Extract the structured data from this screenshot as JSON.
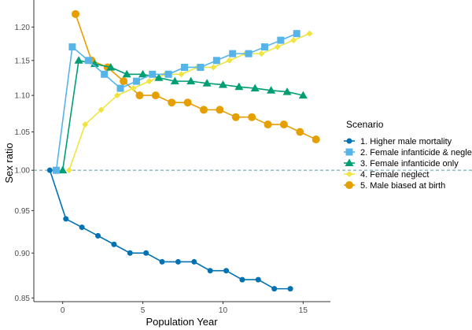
{
  "chart_data": {
    "type": "line",
    "xlabel": "Population Year",
    "ylabel": "Sex ratio",
    "y_scale": "log",
    "xlim": [
      -1.8,
      16.7
    ],
    "ylim": [
      0.846,
      1.242
    ],
    "x_ticks": [
      0,
      5,
      10,
      15
    ],
    "y_ticks": [
      0.85,
      0.9,
      0.95,
      1.0,
      1.05,
      1.1,
      1.15,
      1.2
    ],
    "reference_line": {
      "y": 1.0,
      "style": "dashed",
      "color": "#5b9aa8"
    },
    "grid": false,
    "legend": {
      "title": "Scenario",
      "placement": "right"
    },
    "series": [
      {
        "name": "1. Higher male mortality",
        "color": "#0072B2",
        "marker": "circle-small",
        "x": [
          -0.8,
          0.2,
          1.2,
          2.2,
          3.2,
          4.2,
          5.2,
          6.2,
          7.2,
          8.2,
          9.2,
          10.2,
          11.2,
          12.2,
          13.2,
          14.2
        ],
        "values": [
          1.0,
          0.94,
          0.93,
          0.92,
          0.91,
          0.9,
          0.9,
          0.89,
          0.89,
          0.89,
          0.88,
          0.88,
          0.87,
          0.87,
          0.86,
          0.86
        ]
      },
      {
        "name": "2. Female infanticide & neglect",
        "color": "#56B4E9",
        "marker": "square",
        "x": [
          -0.4,
          0.6,
          1.6,
          2.6,
          3.6,
          4.6,
          5.6,
          6.6,
          7.6,
          8.6,
          9.6,
          10.6,
          11.6,
          12.6,
          13.6,
          14.6
        ],
        "values": [
          1.0,
          1.17,
          1.15,
          1.13,
          1.11,
          1.12,
          1.13,
          1.13,
          1.14,
          1.14,
          1.15,
          1.16,
          1.16,
          1.17,
          1.18,
          1.19
        ]
      },
      {
        "name": "3. Female infanticide only",
        "color": "#009E73",
        "marker": "triangle",
        "x": [
          0,
          1,
          2,
          3,
          4,
          5,
          6,
          7,
          8,
          9,
          10,
          11,
          12,
          13,
          14,
          15
        ],
        "values": [
          1.0,
          1.15,
          1.145,
          1.14,
          1.13,
          1.13,
          1.125,
          1.12,
          1.12,
          1.117,
          1.115,
          1.112,
          1.11,
          1.107,
          1.105,
          1.1
        ]
      },
      {
        "name": "4. Female neglect",
        "color": "#F0E442",
        "marker": "diamond",
        "x": [
          0.4,
          1.4,
          2.4,
          3.4,
          4.4,
          5.4,
          6.4,
          7.4,
          8.4,
          9.4,
          10.4,
          11.4,
          12.4,
          13.4,
          14.4,
          15.4
        ],
        "values": [
          1.0,
          1.06,
          1.08,
          1.1,
          1.11,
          1.12,
          1.13,
          1.13,
          1.14,
          1.14,
          1.15,
          1.16,
          1.16,
          1.17,
          1.18,
          1.19
        ]
      },
      {
        "name": "5. Male biased at birth",
        "color": "#E69F00",
        "marker": "circle",
        "x": [
          0.8,
          1.8,
          2.8,
          3.8,
          4.8,
          5.8,
          6.8,
          7.8,
          8.8,
          9.8,
          10.8,
          11.8,
          12.8,
          13.8,
          14.8,
          15.8
        ],
        "values": [
          1.22,
          1.15,
          1.14,
          1.12,
          1.1,
          1.1,
          1.09,
          1.09,
          1.08,
          1.08,
          1.07,
          1.07,
          1.06,
          1.06,
          1.05,
          1.04
        ]
      }
    ]
  }
}
